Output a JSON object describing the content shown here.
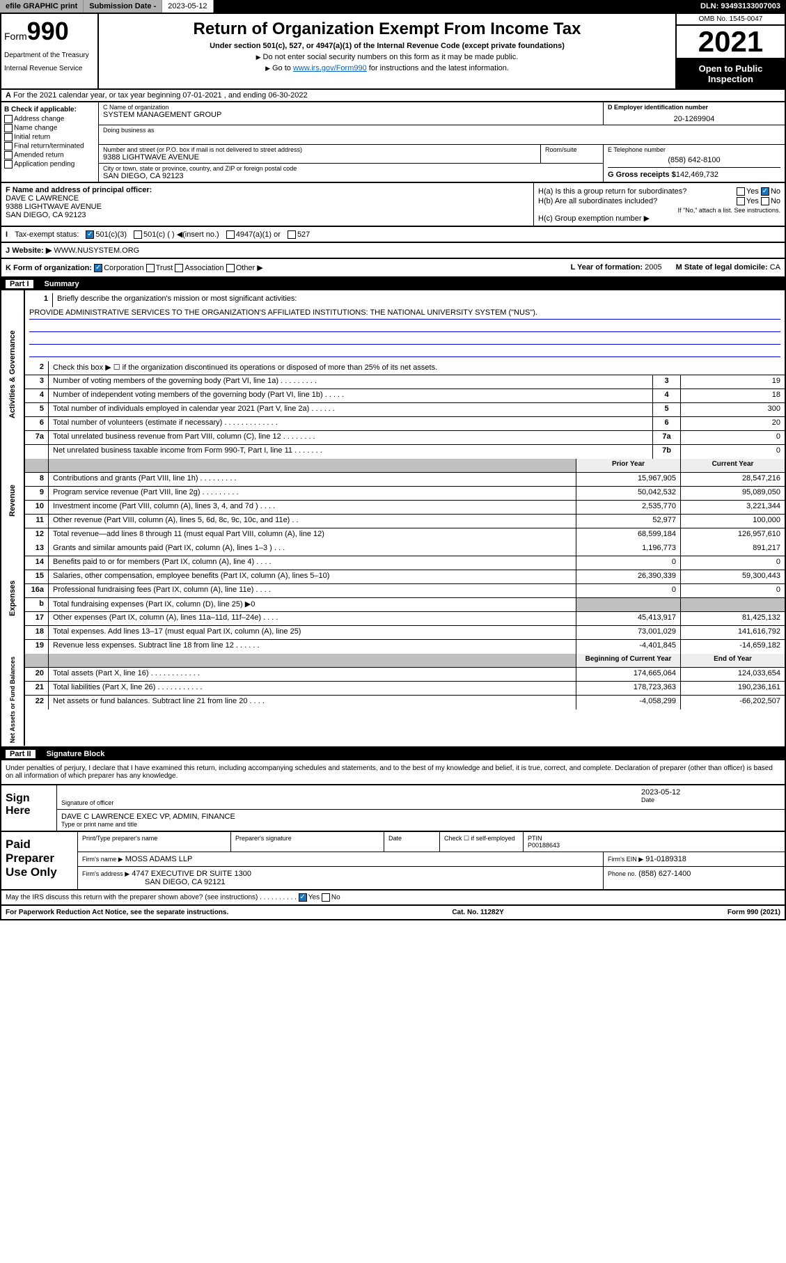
{
  "topbar": {
    "efile": "efile GRAPHIC print",
    "sub_label": "Submission Date - ",
    "sub_date": "2023-05-12",
    "dln_label": "DLN: ",
    "dln": "93493133007003"
  },
  "header": {
    "form": "Form",
    "form_num": "990",
    "dept": "Department of the Treasury",
    "irs": "Internal Revenue Service",
    "title": "Return of Organization Exempt From Income Tax",
    "subtitle": "Under section 501(c), 527, or 4947(a)(1) of the Internal Revenue Code (except private foundations)",
    "note1": "Do not enter social security numbers on this form as it may be made public.",
    "note2_pre": "Go to ",
    "note2_link": "www.irs.gov/Form990",
    "note2_post": " for instructions and the latest information.",
    "omb": "OMB No. 1545-0047",
    "year": "2021",
    "open": "Open to Public Inspection"
  },
  "row_a": "For the 2021 calendar year, or tax year beginning 07-01-2021   , and ending 06-30-2022",
  "row_a_label": "A",
  "section_b": {
    "label": "B Check if applicable:",
    "opts": [
      "Address change",
      "Name change",
      "Initial return",
      "Final return/terminated",
      "Amended return",
      "Application pending"
    ]
  },
  "section_c": {
    "name_label": "C Name of organization",
    "name": "SYSTEM MANAGEMENT GROUP",
    "dba_label": "Doing business as",
    "dba": "",
    "street_label": "Number and street (or P.O. box if mail is not delivered to street address)",
    "street": "9388 LIGHTWAVE AVENUE",
    "room_label": "Room/suite",
    "city_label": "City or town, state or province, country, and ZIP or foreign postal code",
    "city": "SAN DIEGO, CA  92123"
  },
  "section_d": {
    "label": "D Employer identification number",
    "ein": "20-1269904"
  },
  "section_e": {
    "label": "E Telephone number",
    "phone": "(858) 642-8100"
  },
  "section_g": {
    "label": "G Gross receipts $",
    "amount": "142,469,732"
  },
  "section_f": {
    "label": "F Name and address of principal officer:",
    "name": "DAVE C LAWRENCE",
    "street": "9388 LIGHTWAVE AVENUE",
    "city": "SAN DIEGO, CA  92123"
  },
  "section_h": {
    "ha": "H(a)  Is this a group return for subordinates?",
    "hb": "H(b)  Are all subordinates included?",
    "hb_note": "If \"No,\" attach a list. See instructions.",
    "hc": "H(c)  Group exemption number ▶"
  },
  "row_i": {
    "label": "I",
    "tax": "Tax-exempt status:",
    "o1": "501(c)(3)",
    "o2": "501(c) (  ) ◀(insert no.)",
    "o3": "4947(a)(1) or",
    "o4": "527"
  },
  "row_j": {
    "label": "J",
    "web": "Website: ▶",
    "url": "WWW.NUSYSTEM.ORG"
  },
  "row_k": {
    "label": "K Form of organization:",
    "o1": "Corporation",
    "o2": "Trust",
    "o3": "Association",
    "o4": "Other ▶",
    "l": "L Year of formation: ",
    "l_val": "2005",
    "m": "M State of legal domicile: ",
    "m_val": "CA"
  },
  "part1": {
    "num": "Part I",
    "title": "Summary"
  },
  "summary": {
    "l1": "Briefly describe the organization's mission or most significant activities:",
    "mission": "PROVIDE ADMINISTRATIVE SERVICES TO THE ORGANIZATION'S AFFILIATED INSTITUTIONS: THE NATIONAL UNIVERSITY SYSTEM (\"NUS\").",
    "l2": "Check this box ▶ ☐  if the organization discontinued its operations or disposed of more than 25% of its net assets.",
    "rows_gov": [
      {
        "n": "3",
        "d": "Number of voting members of the governing body (Part VI, line 1a)   .   .   .   .   .   .   .   .   .",
        "b": "3",
        "v": "19"
      },
      {
        "n": "4",
        "d": "Number of independent voting members of the governing body (Part VI, line 1b)   .   .   .   .   .",
        "b": "4",
        "v": "18"
      },
      {
        "n": "5",
        "d": "Total number of individuals employed in calendar year 2021 (Part V, line 2a)   .   .   .   .   .   .",
        "b": "5",
        "v": "300"
      },
      {
        "n": "6",
        "d": "Total number of volunteers (estimate if necessary)   .   .   .   .   .   .   .   .   .   .   .   .   .",
        "b": "6",
        "v": "20"
      },
      {
        "n": "7a",
        "d": "Total unrelated business revenue from Part VIII, column (C), line 12   .   .   .   .   .   .   .   .",
        "b": "7a",
        "v": "0"
      },
      {
        "n": "",
        "d": "Net unrelated business taxable income from Form 990-T, Part I, line 11   .   .   .   .   .   .   .",
        "b": "7b",
        "v": "0"
      }
    ],
    "col_prior": "Prior Year",
    "col_curr": "Current Year",
    "rows_rev": [
      {
        "n": "8",
        "d": "Contributions and grants (Part VIII, line 1h)   .   .   .   .   .   .   .   .   .",
        "p": "15,967,905",
        "c": "28,547,216"
      },
      {
        "n": "9",
        "d": "Program service revenue (Part VIII, line 2g)   .   .   .   .   .   .   .   .   .",
        "p": "50,042,532",
        "c": "95,089,050"
      },
      {
        "n": "10",
        "d": "Investment income (Part VIII, column (A), lines 3, 4, and 7d )   .   .   .   .",
        "p": "2,535,770",
        "c": "3,221,344"
      },
      {
        "n": "11",
        "d": "Other revenue (Part VIII, column (A), lines 5, 6d, 8c, 9c, 10c, and 11e)   .   .",
        "p": "52,977",
        "c": "100,000"
      },
      {
        "n": "12",
        "d": "Total revenue—add lines 8 through 11 (must equal Part VIII, column (A), line 12)",
        "p": "68,599,184",
        "c": "126,957,610"
      }
    ],
    "rows_exp": [
      {
        "n": "13",
        "d": "Grants and similar amounts paid (Part IX, column (A), lines 1–3 )   .   .   .",
        "p": "1,196,773",
        "c": "891,217"
      },
      {
        "n": "14",
        "d": "Benefits paid to or for members (Part IX, column (A), line 4)   .   .   .   .",
        "p": "0",
        "c": "0"
      },
      {
        "n": "15",
        "d": "Salaries, other compensation, employee benefits (Part IX, column (A), lines 5–10)",
        "p": "26,390,339",
        "c": "59,300,443"
      },
      {
        "n": "16a",
        "d": "Professional fundraising fees (Part IX, column (A), line 11e)   .   .   .   .",
        "p": "0",
        "c": "0"
      },
      {
        "n": "b",
        "d": "Total fundraising expenses (Part IX, column (D), line 25) ▶0",
        "p": "",
        "c": "",
        "shade": true
      },
      {
        "n": "17",
        "d": "Other expenses (Part IX, column (A), lines 11a–11d, 11f–24e)   .   .   .   .",
        "p": "45,413,917",
        "c": "81,425,132"
      },
      {
        "n": "18",
        "d": "Total expenses. Add lines 13–17 (must equal Part IX, column (A), line 25)",
        "p": "73,001,029",
        "c": "141,616,792"
      },
      {
        "n": "19",
        "d": "Revenue less expenses. Subtract line 18 from line 12   .   .   .   .   .   .",
        "p": "-4,401,845",
        "c": "-14,659,182"
      }
    ],
    "col_beg": "Beginning of Current Year",
    "col_end": "End of Year",
    "rows_net": [
      {
        "n": "20",
        "d": "Total assets (Part X, line 16)   .   .   .   .   .   .   .   .   .   .   .   .",
        "p": "174,665,064",
        "c": "124,033,654"
      },
      {
        "n": "21",
        "d": "Total liabilities (Part X, line 26)   .   .   .   .   .   .   .   .   .   .   .",
        "p": "178,723,363",
        "c": "190,236,161"
      },
      {
        "n": "22",
        "d": "Net assets or fund balances. Subtract line 21 from line 20   .   .   .   .",
        "p": "-4,058,299",
        "c": "-66,202,507"
      }
    ]
  },
  "part2": {
    "num": "Part II",
    "title": "Signature Block"
  },
  "sig_decl": "Under penalties of perjury, I declare that I have examined this return, including accompanying schedules and statements, and to the best of my knowledge and belief, it is true, correct, and complete. Declaration of preparer (other than officer) is based on all information of which preparer has any knowledge.",
  "sign": {
    "here": "Sign Here",
    "sig_label": "Signature of officer",
    "date_label": "Date",
    "date": "2023-05-12",
    "name": "DAVE C LAWRENCE  EXEC VP, ADMIN, FINANCE",
    "name_label": "Type or print name and title"
  },
  "paid": {
    "label": "Paid Preparer Use Only",
    "h1": "Print/Type preparer's name",
    "h2": "Preparer's signature",
    "h3": "Date",
    "h4_a": "Check ☐ if self-employed",
    "h4_b": "PTIN",
    "ptin": "P00188643",
    "firm_label": "Firm's name    ▶",
    "firm": "MOSS ADAMS LLP",
    "ein_label": "Firm's EIN ▶",
    "ein": "91-0189318",
    "addr_label": "Firm's address ▶",
    "addr1": "4747 EXECUTIVE DR SUITE 1300",
    "addr2": "SAN DIEGO, CA  92121",
    "phone_label": "Phone no.",
    "phone": "(858) 627-1400"
  },
  "footer": {
    "q": "May the IRS discuss this return with the preparer shown above? (see instructions)   .   .   .   .   .   .   .   .   .   .",
    "pra": "For Paperwork Reduction Act Notice, see the separate instructions.",
    "cat": "Cat. No. 11282Y",
    "form": "Form 990 (2021)"
  },
  "side_labels": {
    "gov": "Activities & Governance",
    "rev": "Revenue",
    "exp": "Expenses",
    "net": "Net Assets or Fund Balances"
  }
}
